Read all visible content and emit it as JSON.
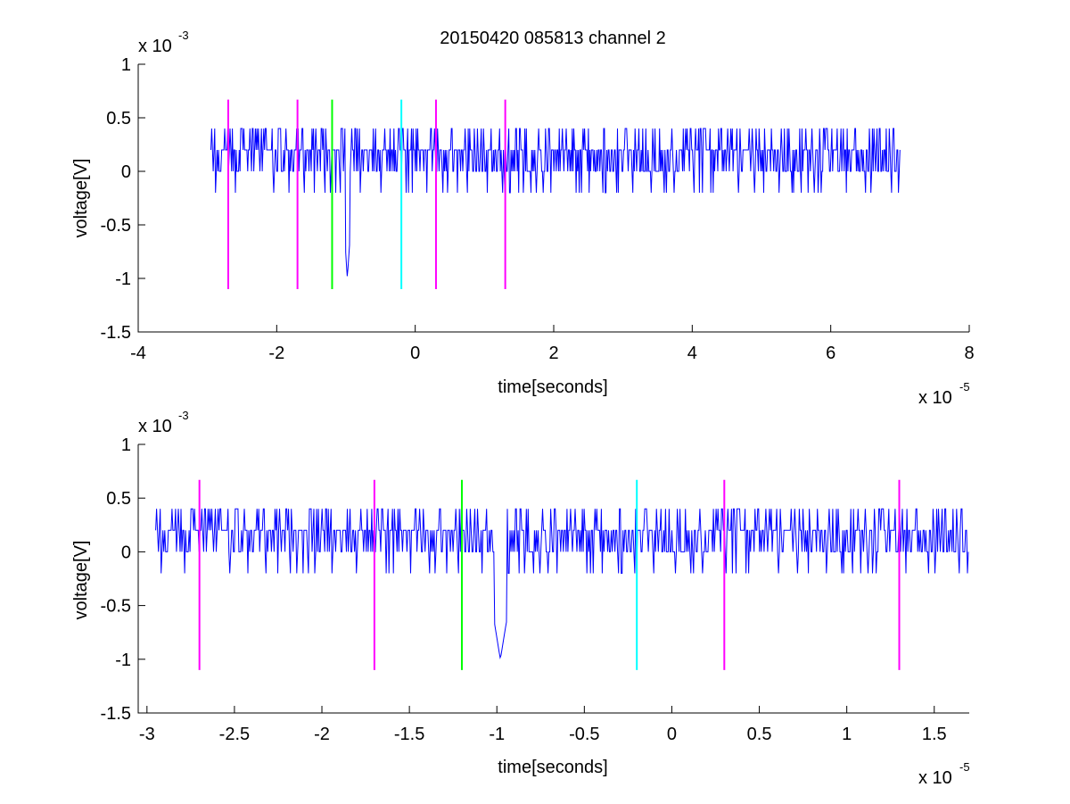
{
  "figure": {
    "title": "20150420 085813 channel 2"
  },
  "chart_data": [
    {
      "type": "line",
      "title": "20150420 085813 channel 2",
      "xlabel": "time[seconds]",
      "ylabel": "voltage[V]",
      "x_exponent_label": "x 10",
      "x_exponent": "-5",
      "y_exponent_label": "x 10",
      "y_exponent": "-3",
      "xlim": [
        -4,
        8
      ],
      "ylim": [
        -1.5,
        1
      ],
      "xticks": [
        "-4",
        "-2",
        "0",
        "2",
        "4",
        "6",
        "8"
      ],
      "yticks": [
        "-1.5",
        "-1",
        "-0.5",
        "0",
        "0.5",
        "1"
      ],
      "grid": false,
      "signal": {
        "color": "#0000ff",
        "x_start": -2.95,
        "x_end": 7.0,
        "baseline": 0.1,
        "levels": [
          0,
          0.2,
          0.4
        ],
        "spike": {
          "x": -0.98,
          "y": -1.0
        }
      },
      "markers": [
        {
          "x": -2.7,
          "y_min": -1.1,
          "y_max": 0.67,
          "color": "#ff00ff"
        },
        {
          "x": -1.7,
          "y_min": -1.1,
          "y_max": 0.67,
          "color": "#ff00ff"
        },
        {
          "x": -1.2,
          "y_min": -1.1,
          "y_max": 0.67,
          "color": "#00ff00"
        },
        {
          "x": -0.2,
          "y_min": -1.1,
          "y_max": 0.67,
          "color": "#00ffff"
        },
        {
          "x": 0.3,
          "y_min": -1.1,
          "y_max": 0.67,
          "color": "#ff00ff"
        },
        {
          "x": 1.3,
          "y_min": -1.1,
          "y_max": 0.67,
          "color": "#ff00ff"
        }
      ]
    },
    {
      "type": "line",
      "title": "",
      "xlabel": "time[seconds]",
      "ylabel": "voltage[V]",
      "x_exponent_label": "x 10",
      "x_exponent": "-5",
      "y_exponent_label": "x 10",
      "y_exponent": "-3",
      "xlim": [
        -3.05,
        1.7
      ],
      "ylim": [
        -1.5,
        1
      ],
      "xticks": [
        "-3",
        "-2.5",
        "-2",
        "-1.5",
        "-1",
        "-0.5",
        "0",
        "0.5",
        "1",
        "1.5"
      ],
      "yticks": [
        "-1.5",
        "-1",
        "-0.5",
        "0",
        "0.5",
        "1"
      ],
      "grid": false,
      "signal": {
        "color": "#0000ff",
        "x_start": -2.95,
        "x_end": 1.7,
        "baseline": 0.1,
        "levels": [
          0,
          0.2,
          0.4
        ],
        "spike": {
          "x": -0.98,
          "y": -1.0
        }
      },
      "markers": [
        {
          "x": -2.7,
          "y_min": -1.1,
          "y_max": 0.67,
          "color": "#ff00ff"
        },
        {
          "x": -1.7,
          "y_min": -1.1,
          "y_max": 0.67,
          "color": "#ff00ff"
        },
        {
          "x": -1.2,
          "y_min": -1.1,
          "y_max": 0.67,
          "color": "#00ff00"
        },
        {
          "x": -0.2,
          "y_min": -1.1,
          "y_max": 0.67,
          "color": "#00ffff"
        },
        {
          "x": 0.3,
          "y_min": -1.1,
          "y_max": 0.67,
          "color": "#ff00ff"
        },
        {
          "x": 1.3,
          "y_min": -1.1,
          "y_max": 0.67,
          "color": "#ff00ff"
        }
      ]
    }
  ]
}
